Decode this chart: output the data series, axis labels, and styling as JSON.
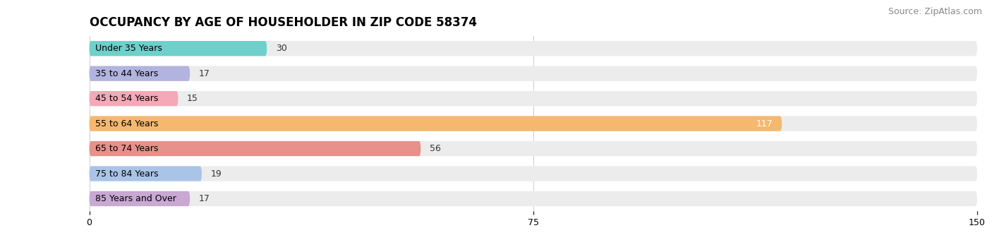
{
  "title": "OCCUPANCY BY AGE OF HOUSEHOLDER IN ZIP CODE 58374",
  "source": "Source: ZipAtlas.com",
  "categories": [
    "Under 35 Years",
    "35 to 44 Years",
    "45 to 54 Years",
    "55 to 64 Years",
    "65 to 74 Years",
    "75 to 84 Years",
    "85 Years and Over"
  ],
  "values": [
    30,
    17,
    15,
    117,
    56,
    19,
    17
  ],
  "bar_colors": [
    "#6ecfcb",
    "#b3b3e0",
    "#f4a8b8",
    "#f5b86e",
    "#e8908a",
    "#aac4e8",
    "#c9a8d4"
  ],
  "bar_bg_color": "#ececec",
  "xlim": [
    0,
    150
  ],
  "xticks": [
    0,
    75,
    150
  ],
  "title_fontsize": 12,
  "source_fontsize": 9,
  "label_fontsize": 9,
  "value_fontsize": 9,
  "background_color": "#ffffff",
  "fig_width": 14.06,
  "fig_height": 3.4
}
